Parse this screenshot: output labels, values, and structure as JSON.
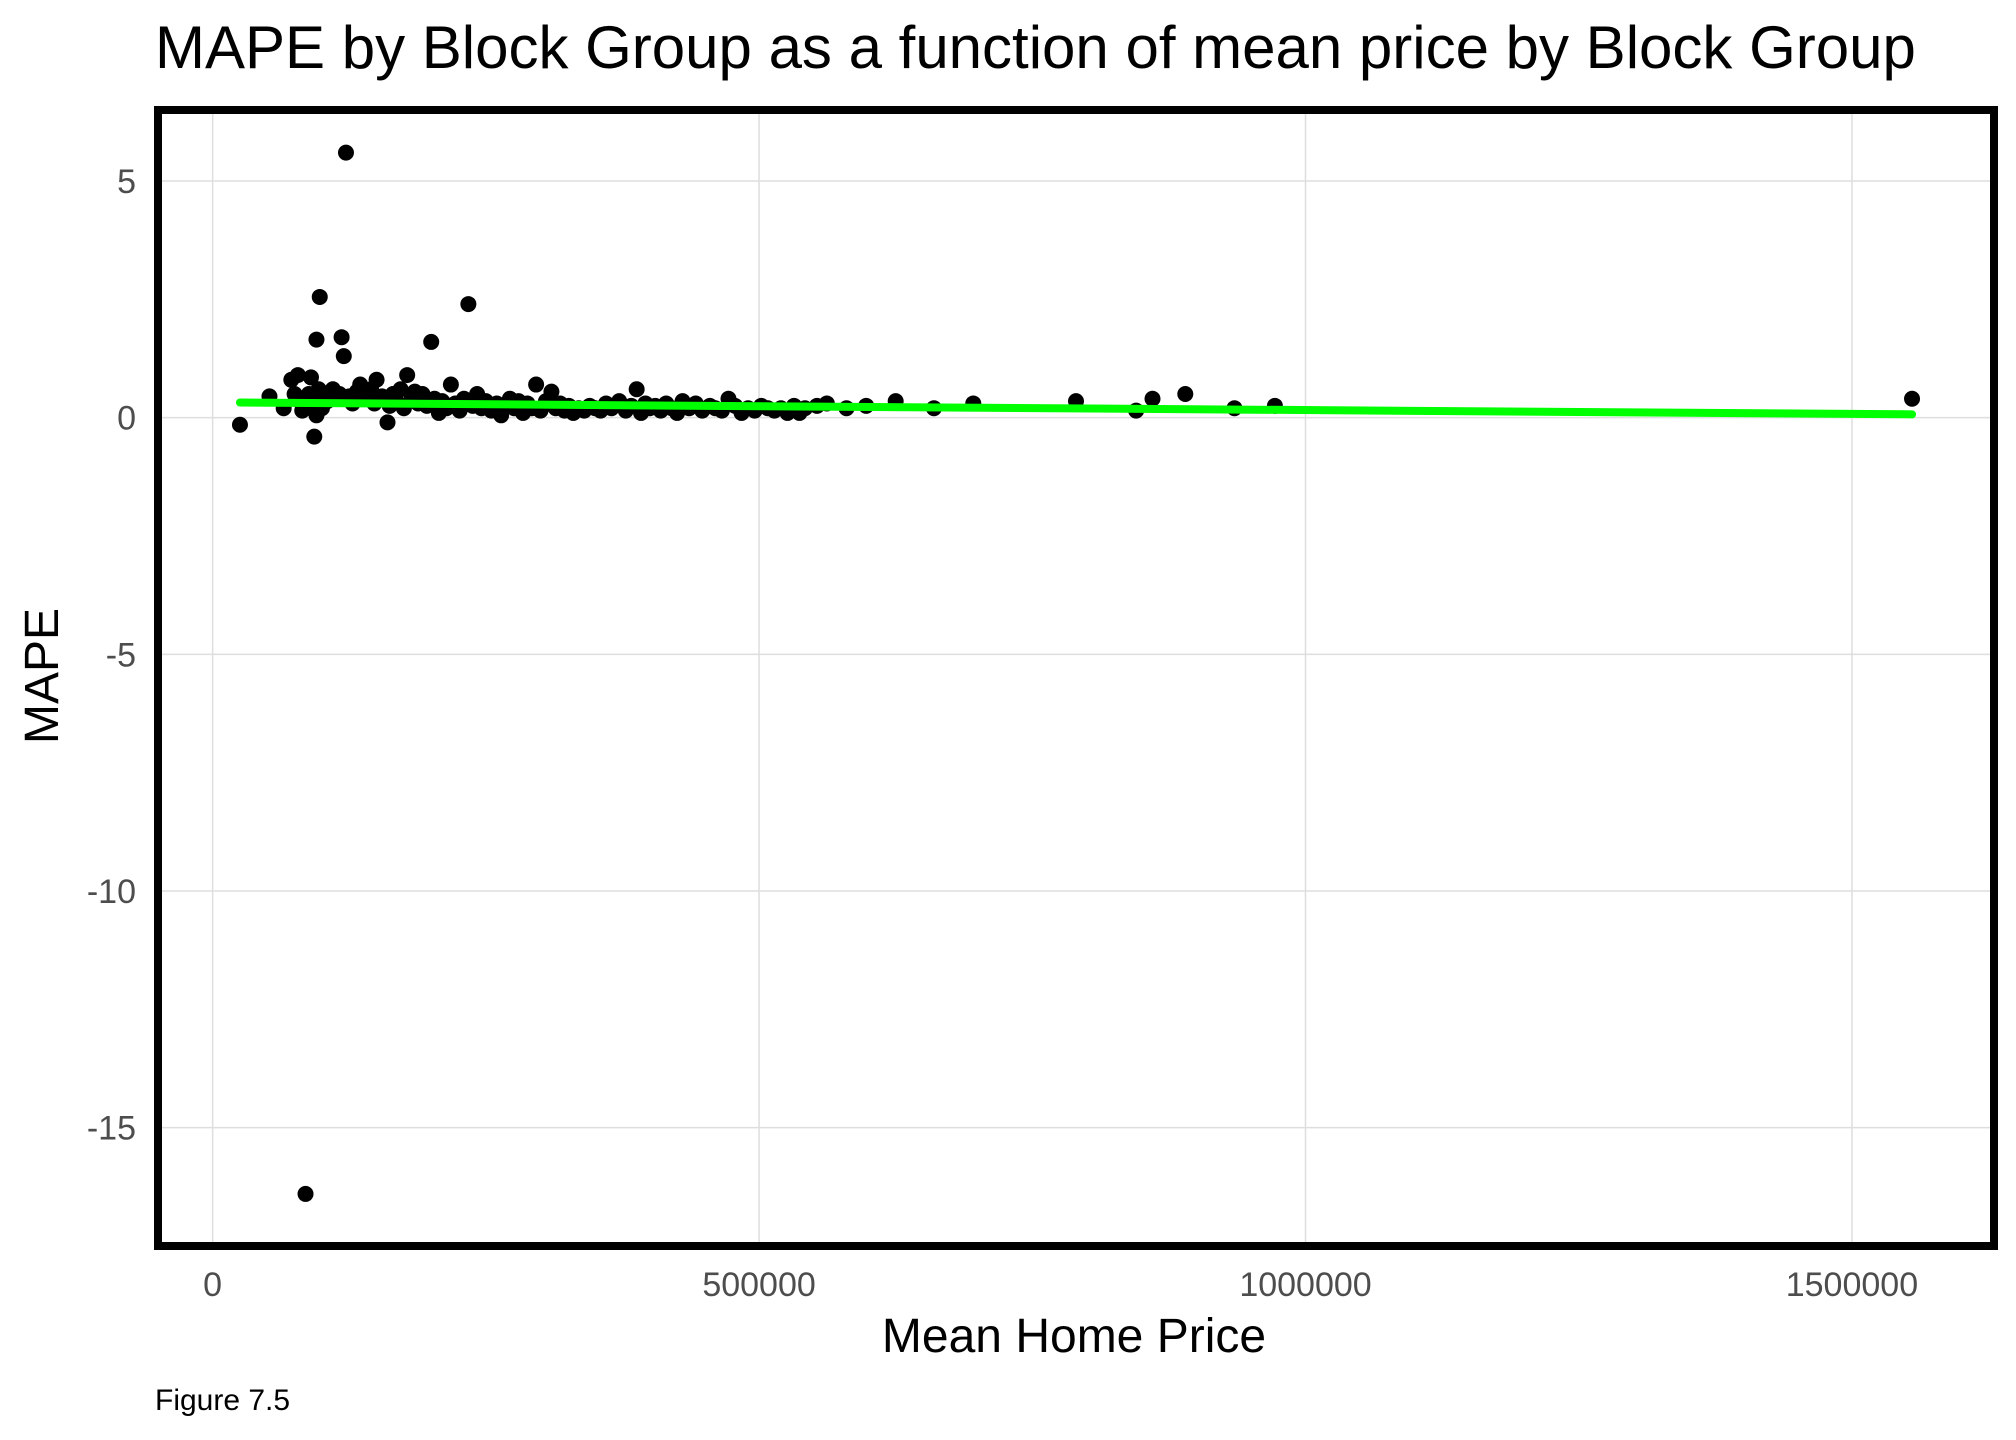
{
  "chart_data": {
    "type": "scatter",
    "title": "MAPE by Block Group as a function of mean price by Block Group",
    "xlabel": "Mean Home Price",
    "ylabel": "MAPE",
    "caption": "Figure 7.5",
    "xlim": [
      -50000,
      1630000
    ],
    "ylim": [
      -17.5,
      6.5
    ],
    "x_ticks": [
      0,
      500000,
      1000000,
      1500000
    ],
    "x_tick_labels": [
      "0",
      "500000",
      "1000000",
      "1500000"
    ],
    "y_ticks": [
      -15,
      -10,
      -5,
      0,
      5
    ],
    "y_tick_labels": [
      "-15",
      "-10",
      "-5",
      "0",
      "5"
    ],
    "grid": true,
    "colors": {
      "points": "#000000",
      "trend": "#00ff00",
      "frame": "#000000"
    },
    "trend_line": {
      "x": [
        25000,
        1555000
      ],
      "y": [
        0.32,
        0.07
      ]
    },
    "points": [
      {
        "x": 25000,
        "y": -0.15
      },
      {
        "x": 52000,
        "y": 0.45
      },
      {
        "x": 65000,
        "y": 0.2
      },
      {
        "x": 72000,
        "y": 0.8
      },
      {
        "x": 75000,
        "y": 0.5
      },
      {
        "x": 78000,
        "y": 0.9
      },
      {
        "x": 80000,
        "y": 0.35
      },
      {
        "x": 82000,
        "y": 0.15
      },
      {
        "x": 85000,
        "y": -16.4
      },
      {
        "x": 88000,
        "y": 0.5
      },
      {
        "x": 90000,
        "y": 0.85
      },
      {
        "x": 92000,
        "y": 0.3
      },
      {
        "x": 93000,
        "y": -0.4
      },
      {
        "x": 95000,
        "y": 1.65
      },
      {
        "x": 95000,
        "y": 0.05
      },
      {
        "x": 97000,
        "y": 0.6
      },
      {
        "x": 98000,
        "y": 2.55
      },
      {
        "x": 100000,
        "y": 0.2
      },
      {
        "x": 103000,
        "y": 0.45
      },
      {
        "x": 105000,
        "y": 0.35
      },
      {
        "x": 108000,
        "y": 0.55
      },
      {
        "x": 110000,
        "y": 0.6
      },
      {
        "x": 113000,
        "y": 0.4
      },
      {
        "x": 116000,
        "y": 0.5
      },
      {
        "x": 118000,
        "y": 1.7
      },
      {
        "x": 120000,
        "y": 1.3
      },
      {
        "x": 122000,
        "y": 5.6
      },
      {
        "x": 125000,
        "y": 0.45
      },
      {
        "x": 128000,
        "y": 0.3
      },
      {
        "x": 132000,
        "y": 0.55
      },
      {
        "x": 135000,
        "y": 0.7
      },
      {
        "x": 140000,
        "y": 0.4
      },
      {
        "x": 145000,
        "y": 0.6
      },
      {
        "x": 148000,
        "y": 0.3
      },
      {
        "x": 150000,
        "y": 0.8
      },
      {
        "x": 155000,
        "y": 0.45
      },
      {
        "x": 160000,
        "y": -0.1
      },
      {
        "x": 162000,
        "y": 0.25
      },
      {
        "x": 165000,
        "y": 0.5
      },
      {
        "x": 168000,
        "y": 0.35
      },
      {
        "x": 172000,
        "y": 0.6
      },
      {
        "x": 175000,
        "y": 0.2
      },
      {
        "x": 178000,
        "y": 0.9
      },
      {
        "x": 182000,
        "y": 0.4
      },
      {
        "x": 185000,
        "y": 0.55
      },
      {
        "x": 188000,
        "y": 0.3
      },
      {
        "x": 192000,
        "y": 0.5
      },
      {
        "x": 196000,
        "y": 0.25
      },
      {
        "x": 200000,
        "y": 1.6
      },
      {
        "x": 203000,
        "y": 0.4
      },
      {
        "x": 207000,
        "y": 0.1
      },
      {
        "x": 210000,
        "y": 0.35
      },
      {
        "x": 214000,
        "y": 0.2
      },
      {
        "x": 218000,
        "y": 0.7
      },
      {
        "x": 222000,
        "y": 0.3
      },
      {
        "x": 226000,
        "y": 0.15
      },
      {
        "x": 230000,
        "y": 0.4
      },
      {
        "x": 234000,
        "y": 2.4
      },
      {
        "x": 238000,
        "y": 0.25
      },
      {
        "x": 242000,
        "y": 0.5
      },
      {
        "x": 246000,
        "y": 0.2
      },
      {
        "x": 250000,
        "y": 0.35
      },
      {
        "x": 255000,
        "y": 0.15
      },
      {
        "x": 260000,
        "y": 0.3
      },
      {
        "x": 264000,
        "y": 0.05
      },
      {
        "x": 268000,
        "y": 0.25
      },
      {
        "x": 272000,
        "y": 0.4
      },
      {
        "x": 276000,
        "y": 0.2
      },
      {
        "x": 280000,
        "y": 0.35
      },
      {
        "x": 284000,
        "y": 0.1
      },
      {
        "x": 288000,
        "y": 0.3
      },
      {
        "x": 292000,
        "y": 0.2
      },
      {
        "x": 296000,
        "y": 0.7
      },
      {
        "x": 300000,
        "y": 0.15
      },
      {
        "x": 305000,
        "y": 0.35
      },
      {
        "x": 310000,
        "y": 0.55
      },
      {
        "x": 314000,
        "y": 0.2
      },
      {
        "x": 318000,
        "y": 0.3
      },
      {
        "x": 322000,
        "y": 0.15
      },
      {
        "x": 326000,
        "y": 0.25
      },
      {
        "x": 330000,
        "y": 0.1
      },
      {
        "x": 335000,
        "y": 0.2
      },
      {
        "x": 340000,
        "y": 0.15
      },
      {
        "x": 345000,
        "y": 0.25
      },
      {
        "x": 350000,
        "y": 0.2
      },
      {
        "x": 355000,
        "y": 0.15
      },
      {
        "x": 360000,
        "y": 0.3
      },
      {
        "x": 365000,
        "y": 0.2
      },
      {
        "x": 372000,
        "y": 0.35
      },
      {
        "x": 378000,
        "y": 0.15
      },
      {
        "x": 383000,
        "y": 0.25
      },
      {
        "x": 388000,
        "y": 0.6
      },
      {
        "x": 392000,
        "y": 0.1
      },
      {
        "x": 396000,
        "y": 0.3
      },
      {
        "x": 400000,
        "y": 0.2
      },
      {
        "x": 405000,
        "y": 0.25
      },
      {
        "x": 410000,
        "y": 0.15
      },
      {
        "x": 415000,
        "y": 0.3
      },
      {
        "x": 420000,
        "y": 0.2
      },
      {
        "x": 425000,
        "y": 0.1
      },
      {
        "x": 430000,
        "y": 0.35
      },
      {
        "x": 436000,
        "y": 0.2
      },
      {
        "x": 442000,
        "y": 0.3
      },
      {
        "x": 448000,
        "y": 0.15
      },
      {
        "x": 455000,
        "y": 0.25
      },
      {
        "x": 460000,
        "y": 0.2
      },
      {
        "x": 466000,
        "y": 0.15
      },
      {
        "x": 472000,
        "y": 0.4
      },
      {
        "x": 478000,
        "y": 0.25
      },
      {
        "x": 484000,
        "y": 0.1
      },
      {
        "x": 490000,
        "y": 0.2
      },
      {
        "x": 496000,
        "y": 0.15
      },
      {
        "x": 502000,
        "y": 0.25
      },
      {
        "x": 508000,
        "y": 0.2
      },
      {
        "x": 514000,
        "y": 0.15
      },
      {
        "x": 520000,
        "y": 0.2
      },
      {
        "x": 526000,
        "y": 0.1
      },
      {
        "x": 532000,
        "y": 0.25
      },
      {
        "x": 537000,
        "y": 0.1
      },
      {
        "x": 542000,
        "y": 0.2
      },
      {
        "x": 553000,
        "y": 0.25
      },
      {
        "x": 562000,
        "y": 0.3
      },
      {
        "x": 580000,
        "y": 0.2
      },
      {
        "x": 598000,
        "y": 0.25
      },
      {
        "x": 625000,
        "y": 0.35
      },
      {
        "x": 660000,
        "y": 0.2
      },
      {
        "x": 696000,
        "y": 0.3
      },
      {
        "x": 790000,
        "y": 0.35
      },
      {
        "x": 845000,
        "y": 0.15
      },
      {
        "x": 860000,
        "y": 0.4
      },
      {
        "x": 890000,
        "y": 0.5
      },
      {
        "x": 935000,
        "y": 0.2
      },
      {
        "x": 972000,
        "y": 0.25
      },
      {
        "x": 1555000,
        "y": 0.4
      }
    ]
  }
}
